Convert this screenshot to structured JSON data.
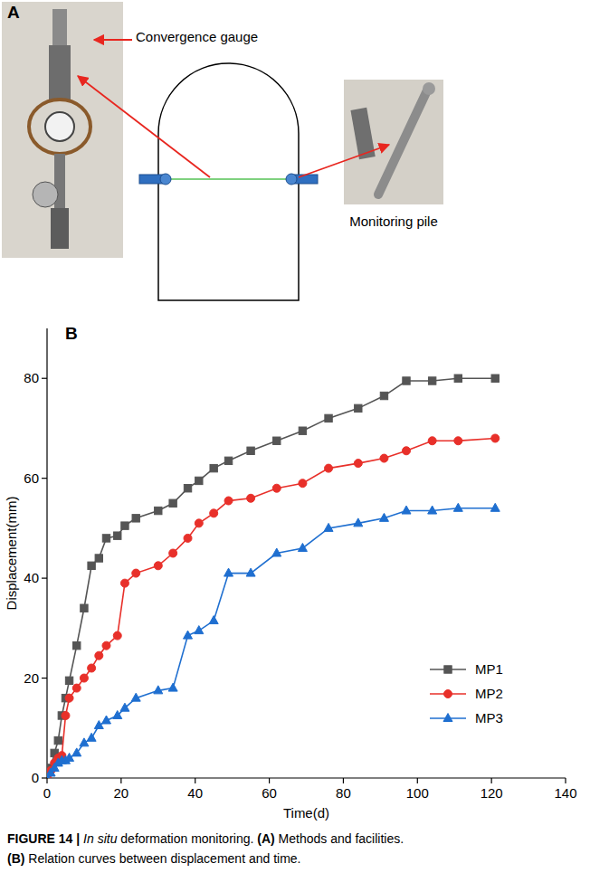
{
  "panel_a": {
    "letter": "A",
    "gauge_label": "Convergence gauge",
    "pile_label": "Monitoring pile"
  },
  "chart_data": {
    "type": "line",
    "letter": "B",
    "x_label": "Time(d)",
    "y_label": "Displacement(mm)",
    "x": [
      0,
      1,
      2,
      3,
      4,
      5,
      6,
      8,
      10,
      12,
      14,
      16,
      19,
      21,
      24,
      30,
      34,
      38,
      41,
      45,
      49,
      55,
      62,
      69,
      76,
      84,
      91,
      97,
      104,
      111,
      121
    ],
    "series": [
      {
        "name": "MP1",
        "color": "#555555",
        "marker": "square",
        "line_style": "solid",
        "values": [
          0,
          2,
          5,
          7.5,
          12.5,
          16,
          19.5,
          26.5,
          34,
          42.5,
          44,
          48,
          48.5,
          50.5,
          52,
          53.5,
          55,
          58,
          59.5,
          62,
          63.5,
          65.5,
          67.5,
          69.5,
          72,
          74,
          76.5,
          79.5,
          79.5,
          80,
          80
        ]
      },
      {
        "name": "MP2",
        "color": "#e8302a",
        "marker": "circle",
        "line_style": "solid",
        "values": [
          0,
          1.5,
          3,
          4,
          4.5,
          12.5,
          16,
          18,
          20,
          22,
          24.5,
          26.5,
          28.5,
          39,
          41,
          42.5,
          45,
          48,
          51,
          53,
          55.5,
          56,
          58,
          59,
          62,
          63,
          64,
          65.5,
          67.5,
          67.5,
          68
        ]
      },
      {
        "name": "MP3",
        "color": "#1f6fd0",
        "marker": "triangle",
        "line_style": "solid",
        "values": [
          0,
          1,
          2,
          3,
          3.5,
          3.5,
          4,
          5,
          7,
          8,
          10.5,
          11.5,
          12.5,
          14,
          16,
          17.5,
          18,
          28.5,
          29.5,
          31.5,
          41,
          41,
          45,
          46,
          50,
          51,
          52,
          53.5,
          53.5,
          54,
          54
        ]
      }
    ],
    "xlim": [
      0,
      140
    ],
    "xticks": [
      0,
      20,
      40,
      60,
      80,
      100,
      120,
      140
    ],
    "ylim": [
      0,
      90
    ],
    "yticks": [
      0,
      20,
      40,
      60,
      80
    ],
    "grid": false,
    "legend": "lower right"
  },
  "caption": {
    "lines": [
      [
        {
          "text": "FIGURE 14 |",
          "bold": true
        },
        {
          "text": " "
        },
        {
          "text": "In situ",
          "italic": true
        },
        {
          "text": " deformation monitoring. "
        },
        {
          "text": "(A)",
          "bold": true
        },
        {
          "text": " Methods and facilities."
        }
      ],
      [
        {
          "text": "(B)",
          "bold": true
        },
        {
          "text": " Relation curves between displacement and time."
        }
      ]
    ]
  }
}
